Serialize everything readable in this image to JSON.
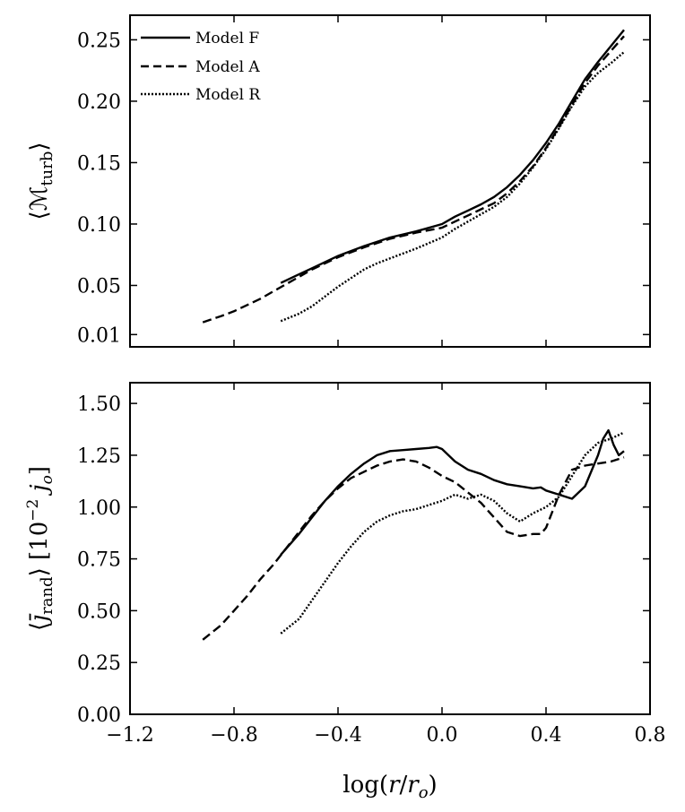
{
  "chart_data": [
    {
      "type": "line",
      "panel": "top",
      "ylabel": "⟨ℳturb⟩",
      "ylabel_main": "⟨ℳ",
      "ylabel_sub": "turb",
      "ylabel_close": "⟩",
      "xlim": [
        -1.2,
        0.8
      ],
      "ylim": [
        0.0,
        0.27
      ],
      "yticks": [
        0.01,
        0.05,
        0.1,
        0.15,
        0.2,
        0.25
      ],
      "ytick_labels": [
        "0.01",
        "0.05",
        "0.10",
        "0.15",
        "0.20",
        "0.25"
      ],
      "legend": "top-left",
      "series": [
        {
          "name": "Model F",
          "style": "solid",
          "x": [
            -0.62,
            -0.55,
            -0.5,
            -0.45,
            -0.4,
            -0.3,
            -0.2,
            -0.1,
            0.0,
            0.05,
            0.1,
            0.15,
            0.2,
            0.25,
            0.3,
            0.35,
            0.4,
            0.45,
            0.5,
            0.55,
            0.6,
            0.65,
            0.7
          ],
          "y": [
            0.052,
            0.059,
            0.064,
            0.069,
            0.074,
            0.082,
            0.089,
            0.094,
            0.1,
            0.106,
            0.111,
            0.116,
            0.122,
            0.13,
            0.14,
            0.152,
            0.166,
            0.182,
            0.2,
            0.218,
            0.232,
            0.245,
            0.258
          ]
        },
        {
          "name": "Model A",
          "style": "dashed",
          "x": [
            -0.92,
            -0.85,
            -0.8,
            -0.75,
            -0.7,
            -0.65,
            -0.6,
            -0.5,
            -0.4,
            -0.3,
            -0.2,
            -0.1,
            0.0,
            0.05,
            0.1,
            0.15,
            0.2,
            0.25,
            0.3,
            0.35,
            0.4,
            0.45,
            0.5,
            0.55,
            0.6,
            0.65,
            0.7
          ],
          "y": [
            0.02,
            0.025,
            0.029,
            0.034,
            0.039,
            0.045,
            0.051,
            0.063,
            0.073,
            0.081,
            0.088,
            0.093,
            0.097,
            0.102,
            0.107,
            0.112,
            0.117,
            0.125,
            0.135,
            0.147,
            0.162,
            0.179,
            0.197,
            0.215,
            0.229,
            0.241,
            0.253
          ]
        },
        {
          "name": "Model R",
          "style": "dotted",
          "x": [
            -0.62,
            -0.55,
            -0.5,
            -0.45,
            -0.4,
            -0.35,
            -0.3,
            -0.25,
            -0.2,
            -0.1,
            0.0,
            0.05,
            0.1,
            0.15,
            0.2,
            0.25,
            0.3,
            0.35,
            0.4,
            0.45,
            0.5,
            0.55,
            0.6,
            0.65,
            0.7
          ],
          "y": [
            0.021,
            0.027,
            0.033,
            0.041,
            0.049,
            0.056,
            0.063,
            0.068,
            0.072,
            0.08,
            0.089,
            0.096,
            0.102,
            0.108,
            0.114,
            0.122,
            0.133,
            0.146,
            0.161,
            0.178,
            0.196,
            0.212,
            0.223,
            0.231,
            0.24
          ]
        }
      ]
    },
    {
      "type": "line",
      "panel": "bottom",
      "xlabel": "log(r/ro)",
      "xlabel_parts": [
        "log(",
        "r",
        "/",
        "r",
        "o",
        ")"
      ],
      "ylabel": "⟨j̄rand⟩ [10−2 jo]",
      "ylabel_parts": [
        "⟨",
        "j̄",
        "rand",
        "⟩ [10",
        "−2",
        " j",
        "o",
        "]"
      ],
      "xlim": [
        -1.2,
        0.8
      ],
      "ylim": [
        0.0,
        1.6
      ],
      "xticks": [
        -1.2,
        -0.8,
        -0.4,
        0.0,
        0.4,
        0.8
      ],
      "xtick_labels": [
        "−1.2",
        "−0.8",
        "−0.4",
        "0.0",
        "0.4",
        "0.8"
      ],
      "yticks": [
        0.0,
        0.25,
        0.5,
        0.75,
        1.0,
        1.25,
        1.5
      ],
      "ytick_labels": [
        "0.00",
        "0.25",
        "0.50",
        "0.75",
        "1.00",
        "1.25",
        "1.50"
      ],
      "series": [
        {
          "name": "Model F",
          "style": "solid",
          "x": [
            -0.62,
            -0.55,
            -0.5,
            -0.45,
            -0.4,
            -0.35,
            -0.3,
            -0.25,
            -0.2,
            -0.15,
            -0.1,
            -0.05,
            -0.02,
            0.0,
            0.05,
            0.1,
            0.15,
            0.2,
            0.25,
            0.3,
            0.35,
            0.38,
            0.4,
            0.45,
            0.5,
            0.55,
            0.6,
            0.62,
            0.64,
            0.66,
            0.68,
            0.7
          ],
          "y": [
            0.77,
            0.87,
            0.95,
            1.03,
            1.1,
            1.16,
            1.21,
            1.25,
            1.27,
            1.275,
            1.28,
            1.285,
            1.29,
            1.28,
            1.22,
            1.18,
            1.16,
            1.13,
            1.11,
            1.1,
            1.09,
            1.095,
            1.08,
            1.06,
            1.04,
            1.1,
            1.25,
            1.33,
            1.37,
            1.3,
            1.25,
            1.27
          ]
        },
        {
          "name": "Model A",
          "style": "dashed",
          "x": [
            -0.92,
            -0.85,
            -0.8,
            -0.75,
            -0.7,
            -0.65,
            -0.6,
            -0.55,
            -0.5,
            -0.45,
            -0.4,
            -0.35,
            -0.3,
            -0.25,
            -0.2,
            -0.15,
            -0.1,
            -0.05,
            0.0,
            0.05,
            0.1,
            0.15,
            0.2,
            0.25,
            0.3,
            0.35,
            0.38,
            0.4,
            0.45,
            0.5,
            0.55,
            0.6,
            0.65,
            0.7
          ],
          "y": [
            0.36,
            0.43,
            0.5,
            0.57,
            0.65,
            0.72,
            0.8,
            0.88,
            0.96,
            1.03,
            1.09,
            1.14,
            1.17,
            1.2,
            1.22,
            1.23,
            1.22,
            1.19,
            1.15,
            1.12,
            1.07,
            1.02,
            0.95,
            0.88,
            0.86,
            0.87,
            0.87,
            0.9,
            1.06,
            1.18,
            1.2,
            1.21,
            1.22,
            1.24
          ]
        },
        {
          "name": "Model R",
          "style": "dotted",
          "x": [
            -0.62,
            -0.55,
            -0.5,
            -0.45,
            -0.4,
            -0.35,
            -0.3,
            -0.25,
            -0.2,
            -0.15,
            -0.1,
            -0.05,
            0.0,
            0.05,
            0.1,
            0.15,
            0.2,
            0.25,
            0.3,
            0.35,
            0.4,
            0.45,
            0.5,
            0.55,
            0.6,
            0.65,
            0.7
          ],
          "y": [
            0.39,
            0.46,
            0.55,
            0.64,
            0.73,
            0.81,
            0.88,
            0.93,
            0.96,
            0.98,
            0.99,
            1.01,
            1.03,
            1.06,
            1.04,
            1.06,
            1.03,
            0.97,
            0.93,
            0.97,
            1.0,
            1.05,
            1.15,
            1.25,
            1.31,
            1.33,
            1.36
          ]
        }
      ]
    }
  ],
  "colors": {
    "line": "#000000",
    "axis": "#000000",
    "background": "#ffffff"
  }
}
